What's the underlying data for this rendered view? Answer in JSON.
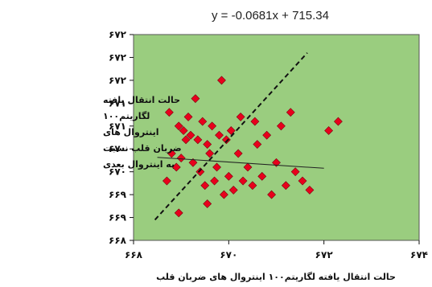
{
  "chart_data": {
    "type": "scatter",
    "title": "",
    "equation": "y = -0.0681x + 715.34",
    "xlabel": "حالت انتقال یافته لگاریتم۱۰۰ اینتروال های ضربان قلب",
    "ylabel_lines": [
      "حالت انتقال یافته",
      "لگاریتم۱۰۰",
      "اینتروال های",
      "ضربان قلب نسبت",
      "به اینتروال بعدی"
    ],
    "xlim": [
      668,
      674
    ],
    "ylim": [
      668.0,
      672.5
    ],
    "x_tick_values": [
      668,
      670,
      672,
      674
    ],
    "x_tick_labels": [
      "۶۶۸",
      "۶۷۰",
      "۶۷۲",
      "۶۷۴"
    ],
    "y_tick_values": [
      668.0,
      668.5,
      669.0,
      669.5,
      670.0,
      670.5,
      671.0,
      671.5,
      672.0,
      672.5
    ],
    "y_tick_labels": [
      "۶۶۸",
      "۶۶۹",
      "۶۶۹",
      "۶۷۰",
      "۶۷۰",
      "۶۷۱",
      "۶۷۱",
      "۶۷۲",
      "۶۷۲",
      "۶۷۲"
    ],
    "grid": false,
    "background_color": "#9ACD7F",
    "marker_color": "#E8001C",
    "trend_line": {
      "slope": -0.0681,
      "intercept": 715.34,
      "x_range": [
        668.5,
        672.0
      ]
    },
    "diagonal_line": {
      "start": [
        668.45,
        668.45
      ],
      "end": [
        671.65,
        672.1
      ],
      "style": "dashed"
    },
    "series": [
      {
        "name": "",
        "points": [
          [
            668.7,
            669.3
          ],
          [
            668.75,
            670.8
          ],
          [
            668.8,
            669.9
          ],
          [
            668.9,
            669.6
          ],
          [
            668.95,
            668.6
          ],
          [
            668.95,
            670.5
          ],
          [
            669.0,
            669.8
          ],
          [
            669.05,
            670.4
          ],
          [
            669.1,
            670.2
          ],
          [
            669.15,
            670.7
          ],
          [
            669.2,
            670.3
          ],
          [
            669.25,
            669.7
          ],
          [
            669.3,
            671.1
          ],
          [
            669.35,
            670.2
          ],
          [
            669.4,
            669.5
          ],
          [
            669.45,
            670.6
          ],
          [
            669.5,
            669.2
          ],
          [
            669.55,
            670.1
          ],
          [
            669.55,
            668.8
          ],
          [
            669.6,
            669.9
          ],
          [
            669.65,
            670.5
          ],
          [
            669.7,
            669.3
          ],
          [
            669.75,
            669.6
          ],
          [
            669.8,
            670.3
          ],
          [
            669.85,
            671.5
          ],
          [
            669.9,
            669.0
          ],
          [
            669.95,
            670.2
          ],
          [
            670.0,
            669.4
          ],
          [
            670.05,
            670.4
          ],
          [
            670.1,
            669.1
          ],
          [
            670.2,
            669.9
          ],
          [
            670.25,
            670.7
          ],
          [
            670.3,
            669.3
          ],
          [
            670.4,
            669.6
          ],
          [
            670.5,
            669.2
          ],
          [
            670.55,
            670.6
          ],
          [
            670.6,
            670.1
          ],
          [
            670.7,
            669.4
          ],
          [
            670.8,
            670.3
          ],
          [
            670.9,
            669.0
          ],
          [
            671.0,
            669.7
          ],
          [
            671.1,
            670.5
          ],
          [
            671.2,
            669.2
          ],
          [
            671.3,
            670.8
          ],
          [
            671.4,
            669.5
          ],
          [
            671.55,
            669.3
          ],
          [
            671.7,
            669.1
          ],
          [
            672.1,
            670.4
          ],
          [
            672.3,
            670.6
          ]
        ]
      }
    ]
  }
}
